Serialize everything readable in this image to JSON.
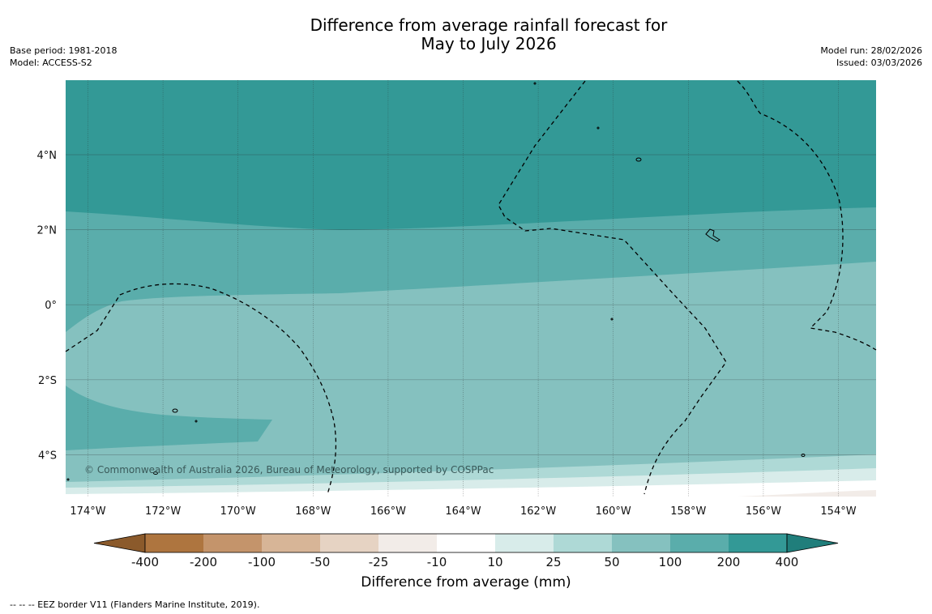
{
  "title": {
    "line1": "Difference from average rainfall forecast for",
    "line2": "May to July 2026"
  },
  "meta_left": {
    "base_period": "Base period: 1981-2018",
    "model": "Model: ACCESS-S2"
  },
  "meta_right": {
    "model_run": "Model run: 28/02/2026",
    "issued": "Issued: 03/03/2026"
  },
  "map": {
    "lon_labels": [
      "174°W",
      "172°W",
      "170°W",
      "168°W",
      "166°W",
      "164°W",
      "162°W",
      "160°W",
      "158°W",
      "156°W",
      "154°W"
    ],
    "lat_labels": [
      "4°N",
      "2°N",
      "0°",
      "2°S",
      "4°S"
    ],
    "copyright": "© Commonwealth of Australia 2026, Bureau of Meteorology, supported by COSPPac"
  },
  "legend": {
    "title": "Difference from average (mm)",
    "tick_labels": [
      "-400",
      "-200",
      "-100",
      "-50",
      "-25",
      "-10",
      "10",
      "25",
      "50",
      "100",
      "200",
      "400"
    ],
    "colors": {
      "below_min": "#8b5a2b",
      "bins": [
        "#ae753f",
        "#c4946b",
        "#d7b597",
        "#e6d3c3",
        "#f2ece8",
        "#ffffff",
        "#d8ecea",
        "#aed9d6",
        "#85c1bf",
        "#5aadab",
        "#339996"
      ],
      "above_max": "#207e7b"
    }
  },
  "footer": "--  --  -- EEZ border V11 (Flanders Marine Institute, 2019)."
}
